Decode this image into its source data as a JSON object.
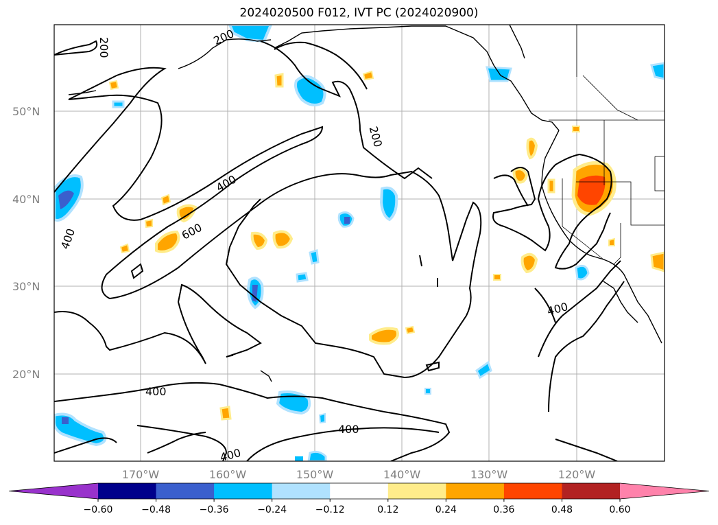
{
  "title": "2024020500 F012, IVT PC (2024020900)",
  "latitudes": [
    "50°N",
    "40°N",
    "30°N",
    "20°N"
  ],
  "longitudes": [
    "170°W",
    "160°W",
    "150°W",
    "140°W",
    "130°W",
    "120°W"
  ],
  "contour_labels": [
    "200",
    "200",
    "200",
    "400",
    "400",
    "600",
    "400",
    "400",
    "400"
  ],
  "colorbar": {
    "ticks": [
      "−0.60",
      "−0.48",
      "−0.36",
      "−0.24",
      "−0.12",
      "0.12",
      "0.24",
      "0.36",
      "0.48",
      "0.60"
    ],
    "colors": [
      "#9932cc",
      "#00008b",
      "#3a5fcd",
      "#00bfff",
      "#b0e2ff",
      "#ffffff",
      "#ffec8b",
      "#ffa500",
      "#ff4500",
      "#b22222",
      "#ff82ab"
    ]
  }
}
